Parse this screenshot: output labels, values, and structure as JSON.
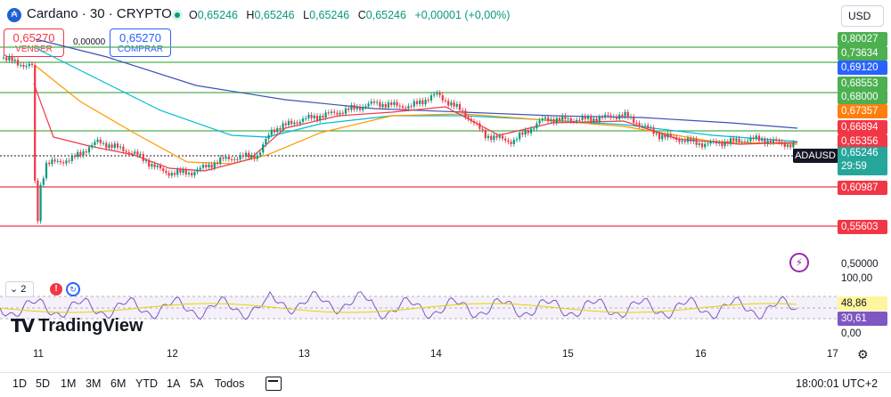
{
  "header": {
    "symbol_title": "Cardano · 30 · CRYPTO",
    "ohlc": [
      {
        "k": "O",
        "v": "0,65246"
      },
      {
        "k": "H",
        "v": "0,65246"
      },
      {
        "k": "L",
        "v": "0,65246"
      },
      {
        "k": "C",
        "v": "0,65246"
      },
      {
        "k": "",
        "v": "+0,00001 (+0,00%)"
      }
    ],
    "currency": "USD",
    "icons": {
      "coin": "cardano-icon",
      "live": "live-status-icon"
    }
  },
  "trade": {
    "sell_price": "0,65270",
    "sell_label": "VENDER",
    "buy_price": "0,65270",
    "buy_label": "COMPRAR",
    "spread": "0,00000"
  },
  "price_axis": {
    "labels": [
      {
        "text": "0,80027",
        "color": "#4caf50"
      },
      {
        "text": "0,73634",
        "color": "#4caf50"
      },
      {
        "text": "0,69120",
        "color": "#2962ff"
      },
      {
        "text": "0,68553",
        "color": "#4caf50"
      },
      {
        "text": "0,68000",
        "color": "#4caf50"
      },
      {
        "text": "0,67357",
        "color": "#ff7f0e"
      },
      {
        "text": "0,66894",
        "color": "#f23645"
      },
      {
        "text": "0,65356",
        "color": "#f23645"
      },
      {
        "text": "0,60987",
        "color": "#f23645"
      },
      {
        "text": "0,55603",
        "color": "#f23645"
      }
    ],
    "bottom_label": "0,50000",
    "symbol_tag": "ADAUSD",
    "current_price": "0,65246",
    "countdown": "29:59"
  },
  "indicator": {
    "control_value": "2",
    "axis_top": "100,00",
    "axis_bottom": "0,00",
    "value_1": "48,86",
    "value_2": "30,61",
    "value_1_color": "#fff59d",
    "value_2_color": "#7e57c2"
  },
  "branding": {
    "logo_text": "TradingView",
    "logo_mark": "TV"
  },
  "time_axis": [
    "11",
    "12",
    "13",
    "14",
    "15",
    "16",
    "17"
  ],
  "ranges": [
    "1D",
    "5D",
    "1M",
    "3M",
    "6M",
    "YTD",
    "1A",
    "5A",
    "Todos"
  ],
  "clock": "18:00:01 UTC+2",
  "colors": {
    "up": "#089981",
    "down": "#f23645",
    "support_line": "#f23645",
    "resistance_line": "#4caf50",
    "ma_fast": "#f23645",
    "ma_mid": "#ff9800",
    "ma_slow": "#00bcd4",
    "ma_long": "#3f51b5"
  }
}
